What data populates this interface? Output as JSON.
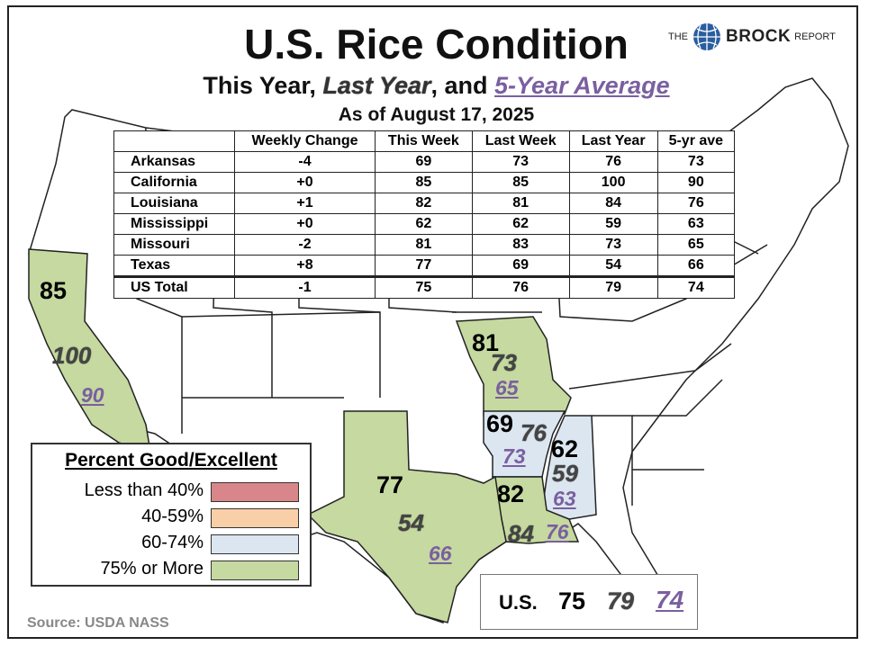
{
  "title": "U.S. Rice Condition",
  "subtitle": {
    "this_year": "This Year, ",
    "last_year": "Last Year",
    "and": ", and ",
    "avg": "5-Year Average"
  },
  "as_of": "As of August 17, 2025",
  "brand": {
    "the": "THE",
    "name": "BROCK",
    "report": "REPORT"
  },
  "table": {
    "headers": [
      "",
      "Weekly Change",
      "This Week",
      "Last Week",
      "Last Year",
      "5-yr ave"
    ],
    "rows": [
      {
        "state": "Arkansas",
        "change": "-4",
        "this_week": "69",
        "last_week": "73",
        "last_year": "76",
        "avg": "73"
      },
      {
        "state": "California",
        "change": "+0",
        "this_week": "85",
        "last_week": "85",
        "last_year": "100",
        "avg": "90"
      },
      {
        "state": "Louisiana",
        "change": "+1",
        "this_week": "82",
        "last_week": "81",
        "last_year": "84",
        "avg": "76"
      },
      {
        "state": "Mississippi",
        "change": "+0",
        "this_week": "62",
        "last_week": "62",
        "last_year": "59",
        "avg": "63"
      },
      {
        "state": "Missouri",
        "change": "-2",
        "this_week": "81",
        "last_week": "83",
        "last_year": "73",
        "avg": "65"
      },
      {
        "state": "Texas",
        "change": "+8",
        "this_week": "77",
        "last_week": "69",
        "last_year": "54",
        "avg": "66"
      }
    ],
    "total": {
      "state": "US Total",
      "change": "-1",
      "this_week": "75",
      "last_week": "76",
      "last_year": "79",
      "avg": "74"
    }
  },
  "map_labels": {
    "california": {
      "cur": "85",
      "ly": "100",
      "avg": "90"
    },
    "missouri": {
      "cur": "81",
      "ly": "73",
      "avg": "65"
    },
    "arkansas": {
      "cur": "69",
      "ly": "76",
      "avg": "73"
    },
    "mississippi": {
      "cur": "62",
      "ly": "59",
      "avg": "63"
    },
    "louisiana": {
      "cur": "82",
      "ly": "84",
      "avg": "76"
    },
    "texas": {
      "cur": "77",
      "ly": "54",
      "avg": "66"
    }
  },
  "legend": {
    "title": "Percent Good/Excellent",
    "items": [
      {
        "label": "Less than 40%",
        "color": "#d9868a"
      },
      {
        "label": "40-59%",
        "color": "#f9cfa7"
      },
      {
        "label": "60-74%",
        "color": "#dce6f0"
      },
      {
        "label": "75% or More",
        "color": "#c5d9a0"
      }
    ]
  },
  "us": {
    "label": "U.S.",
    "cur": "75",
    "ly": "79",
    "avg": "74"
  },
  "source": "Source: USDA NASS",
  "colors": {
    "green": "#c5d9a0",
    "blue": "#dce6f0",
    "border": "#222222"
  }
}
